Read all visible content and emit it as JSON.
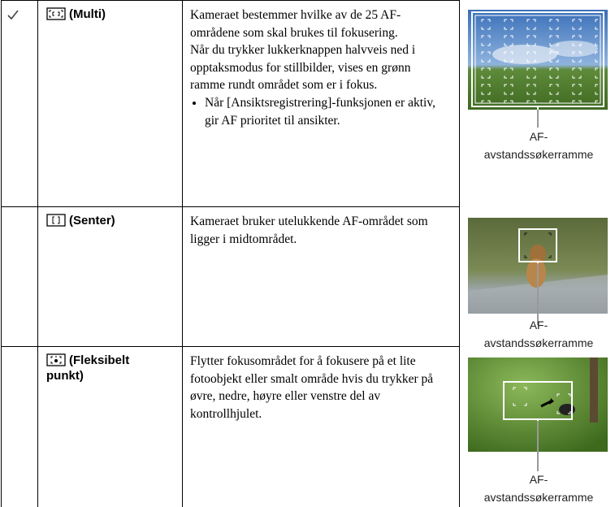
{
  "rows": [
    {
      "mode": "(Multi)",
      "description": [
        "Kameraet bestemmer hvilke av de 25 AF-områdene som skal brukes til fokusering.",
        "Når du trykker lukkerknappen halvveis ned i opptaksmodus for stillbilder, vises en grønn ramme rundt området som er i fokus."
      ],
      "bullets": [
        "Når [Ansiktsregistrering]-funksjonen er aktiv, gir AF prioritet til ansikter."
      ],
      "caption": [
        "AF-",
        "avstandssøkerramme"
      ]
    },
    {
      "mode": "(Senter)",
      "description": [
        "Kameraet bruker utelukkende AF-området som ligger i midtområdet."
      ],
      "bullets": [],
      "caption": [
        "AF-",
        "avstandssøkerramme"
      ]
    },
    {
      "mode": "(Fleksibelt punkt)",
      "description": [
        "Flytter fokusområdet for å fokusere på et lite fotoobjekt eller smalt område hvis du trykker på øvre, nedre, høyre eller venstre del av kontrollhjulet."
      ],
      "bullets": [],
      "caption": [
        "AF-",
        "avstandssøkerramme"
      ]
    }
  ]
}
